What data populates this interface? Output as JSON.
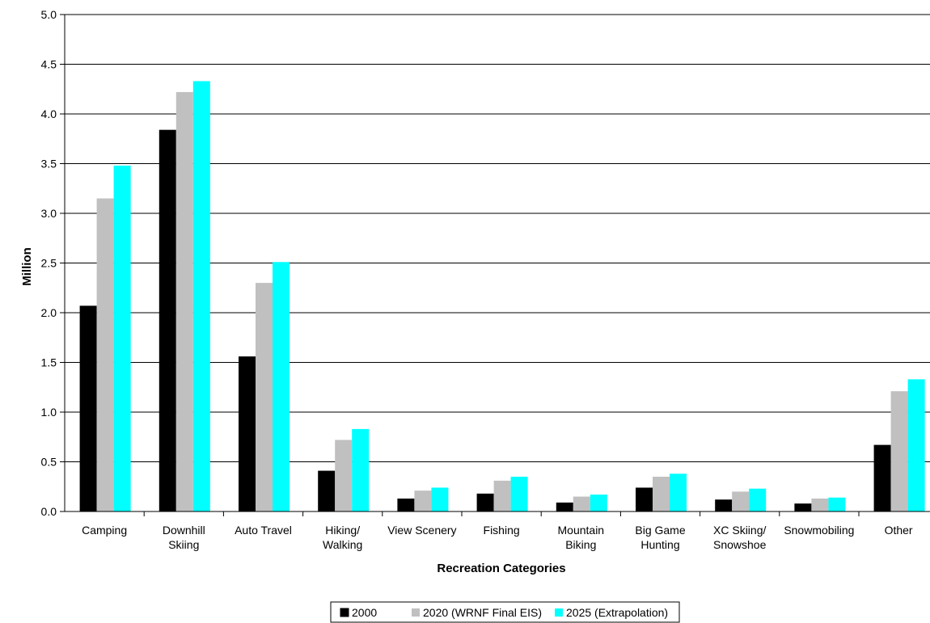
{
  "chart_data": {
    "type": "bar",
    "title": "",
    "xlabel": "Recreation Categories",
    "ylabel": "Million",
    "ylim": [
      0,
      5.0
    ],
    "ytick_step": 0.5,
    "grid": true,
    "legend_position": "bottom",
    "categories": [
      [
        "Camping"
      ],
      [
        "Downhill",
        "Skiing"
      ],
      [
        "Auto Travel"
      ],
      [
        "Hiking/",
        "Walking"
      ],
      [
        "View Scenery"
      ],
      [
        "Fishing"
      ],
      [
        "Mountain",
        "Biking"
      ],
      [
        "Big Game",
        "Hunting"
      ],
      [
        "XC Skiing/",
        "Snowshoe"
      ],
      [
        "Snowmobiling"
      ],
      [
        "Other"
      ]
    ],
    "series": [
      {
        "name": "2000",
        "color": "#000000",
        "values": [
          2.07,
          3.84,
          1.56,
          0.41,
          0.13,
          0.18,
          0.09,
          0.24,
          0.12,
          0.08,
          0.67
        ]
      },
      {
        "name": "2020 (WRNF Final EIS)",
        "color": "#c0c0c0",
        "values": [
          3.15,
          4.22,
          2.3,
          0.72,
          0.21,
          0.31,
          0.15,
          0.35,
          0.2,
          0.13,
          1.21
        ]
      },
      {
        "name": "2025 (Extrapolation)",
        "color": "#00ffff",
        "values": [
          3.48,
          4.33,
          2.51,
          0.83,
          0.24,
          0.35,
          0.17,
          0.38,
          0.23,
          0.14,
          1.33
        ]
      }
    ]
  }
}
